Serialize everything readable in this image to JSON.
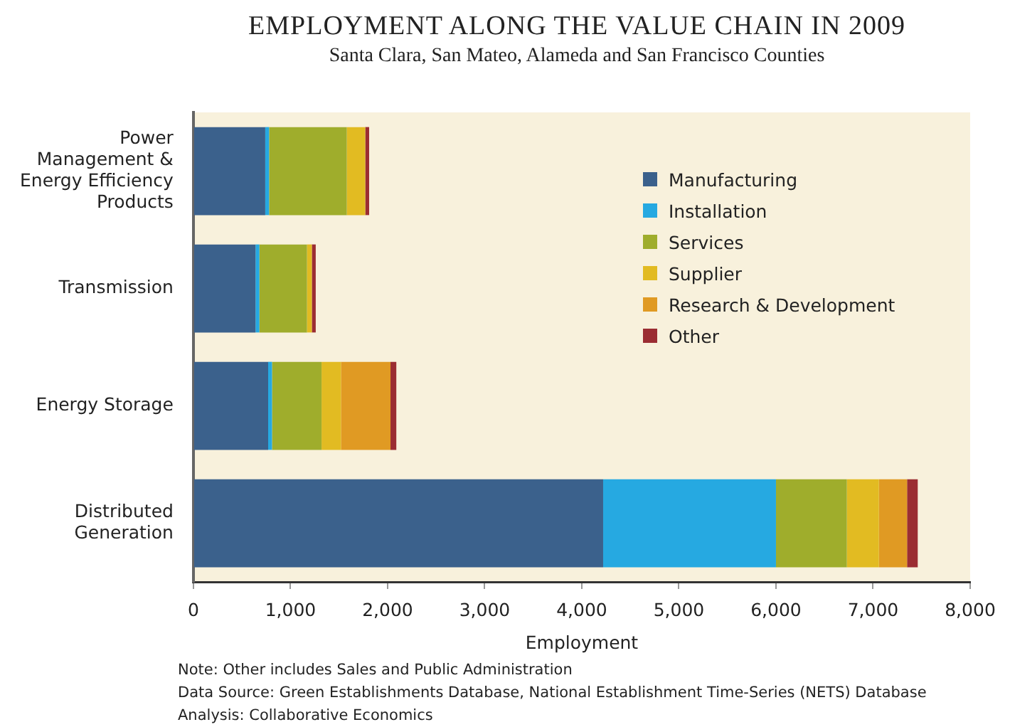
{
  "chart_data": {
    "type": "bar",
    "orientation": "horizontal",
    "stacked": true,
    "title": "EMPLOYMENT ALONG THE VALUE CHAIN IN 2009",
    "subtitle": "Santa Clara, San Mateo, Alameda and San Francisco Counties",
    "xlabel": "Employment",
    "categories": [
      "Power Management & Energy Efficiency Products",
      "Transmission",
      "Energy Storage",
      "Distributed Generation"
    ],
    "series": [
      {
        "name": "Manufacturing",
        "color": "#3b618c",
        "values": [
          740,
          640,
          770,
          4220
        ]
      },
      {
        "name": "Installation",
        "color": "#26a9e1",
        "values": [
          40,
          40,
          40,
          1780
        ]
      },
      {
        "name": "Services",
        "color": "#9fad2c",
        "values": [
          800,
          490,
          510,
          730
        ]
      },
      {
        "name": "Supplier",
        "color": "#e2bb22",
        "values": [
          190,
          50,
          200,
          330
        ]
      },
      {
        "name": "Research & Development",
        "color": "#e09a23",
        "values": [
          0,
          0,
          510,
          290
        ]
      },
      {
        "name": "Other",
        "color": "#9b2d32",
        "values": [
          40,
          40,
          60,
          110
        ]
      }
    ],
    "xlim": [
      0,
      8000
    ],
    "xticks": [
      0,
      {
        "value": 1000,
        "label": "1,000"
      },
      {
        "value": 2000,
        "label": "2,000"
      },
      {
        "value": 3000,
        "label": "3,000"
      },
      {
        "value": 4000,
        "label": "4,000"
      },
      {
        "value": 5000,
        "label": "5,000"
      },
      {
        "value": 6000,
        "label": "6,000"
      },
      {
        "value": 7000,
        "label": "7,000"
      },
      {
        "value": 8000,
        "label": "8,000"
      }
    ],
    "grid": false,
    "legend": "right",
    "annotations": [
      "Note: Other includes Sales and Public Administration",
      "Data Source: Green Establishments Database, National Establishment Time-Series (NETS) Database",
      "Analysis: Collaborative Economics"
    ]
  }
}
